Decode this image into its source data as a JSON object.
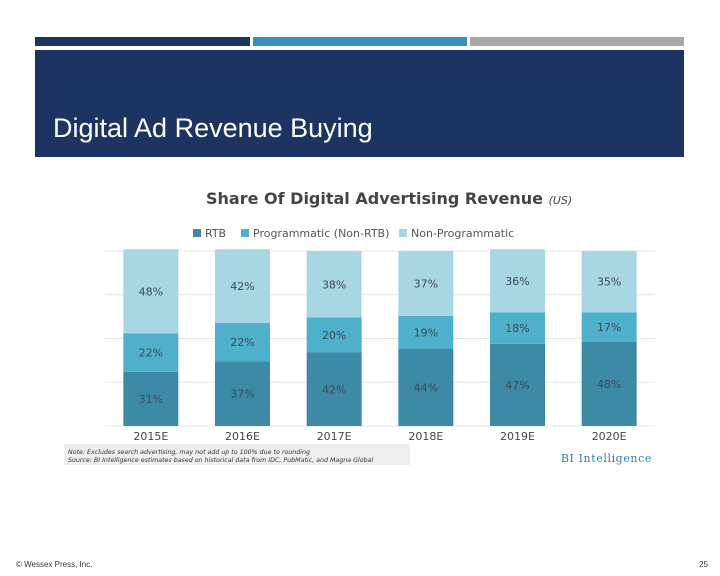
{
  "slide": {
    "title": "Digital Ad Revenue Buying",
    "footer_left": "© Wessex Press, Inc.",
    "page_number": "25"
  },
  "colors": {
    "band_dark": "#1b3461",
    "band_mid": "#3b8fbf",
    "band_grey": "#a8a8a8",
    "rtb": "#3c8aa6",
    "programmatic": "#4fb0cb",
    "non_programmatic": "#a8d6e3",
    "bi_logo": "#2e7fa6"
  },
  "chart_data": {
    "type": "bar",
    "stacked": true,
    "title": "Share Of Digital Advertising Revenue",
    "title_suffix": "(US)",
    "categories": [
      "2015E",
      "2016E",
      "2017E",
      "2018E",
      "2019E",
      "2020E"
    ],
    "series": [
      {
        "name": "RTB",
        "values": [
          31,
          37,
          42,
          44,
          47,
          48
        ],
        "labels": [
          "31%",
          "37%",
          "42%",
          "44%",
          "47%",
          "48%"
        ]
      },
      {
        "name": "Programmatic (Non-RTB)",
        "values": [
          22,
          22,
          20,
          19,
          18,
          17
        ],
        "labels": [
          "22%",
          "22%",
          "20%",
          "19%",
          "18%",
          "17%"
        ]
      },
      {
        "name": "Non-Programmatic",
        "values": [
          48,
          42,
          38,
          37,
          36,
          35
        ],
        "labels": [
          "48%",
          "42%",
          "38%",
          "37%",
          "36%",
          "35%"
        ]
      }
    ],
    "ylim": [
      0,
      100
    ],
    "grid": true,
    "legend_position": "top",
    "note": "Note: Excludes search advertising, may not add up to 100% due to rounding",
    "source": "Source: BI Intelligence estimates based on historical data from IDC, PubMatic, and Magna Global",
    "logo": "BI Intelligence"
  }
}
